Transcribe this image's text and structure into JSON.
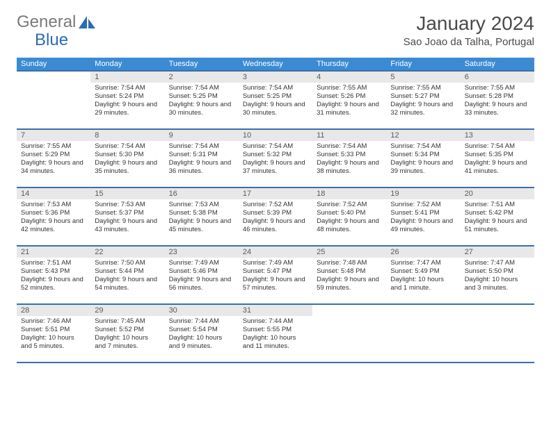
{
  "logo": {
    "text1": "General",
    "text2": "Blue"
  },
  "title": "January 2024",
  "location": "Sao Joao da Talha, Portugal",
  "colors": {
    "header_bg": "#3b8bd4",
    "header_text": "#ffffff",
    "row_border": "#3b6fa8",
    "daynum_bg": "#e8e8e8",
    "logo_blue": "#2a6cb3",
    "logo_gray": "#7a7a7a"
  },
  "weekdays": [
    "Sunday",
    "Monday",
    "Tuesday",
    "Wednesday",
    "Thursday",
    "Friday",
    "Saturday"
  ],
  "weeks": [
    [
      null,
      {
        "n": "1",
        "sr": "7:54 AM",
        "ss": "5:24 PM",
        "dl": "9 hours and 29 minutes."
      },
      {
        "n": "2",
        "sr": "7:54 AM",
        "ss": "5:25 PM",
        "dl": "9 hours and 30 minutes."
      },
      {
        "n": "3",
        "sr": "7:54 AM",
        "ss": "5:25 PM",
        "dl": "9 hours and 30 minutes."
      },
      {
        "n": "4",
        "sr": "7:55 AM",
        "ss": "5:26 PM",
        "dl": "9 hours and 31 minutes."
      },
      {
        "n": "5",
        "sr": "7:55 AM",
        "ss": "5:27 PM",
        "dl": "9 hours and 32 minutes."
      },
      {
        "n": "6",
        "sr": "7:55 AM",
        "ss": "5:28 PM",
        "dl": "9 hours and 33 minutes."
      }
    ],
    [
      {
        "n": "7",
        "sr": "7:55 AM",
        "ss": "5:29 PM",
        "dl": "9 hours and 34 minutes."
      },
      {
        "n": "8",
        "sr": "7:54 AM",
        "ss": "5:30 PM",
        "dl": "9 hours and 35 minutes."
      },
      {
        "n": "9",
        "sr": "7:54 AM",
        "ss": "5:31 PM",
        "dl": "9 hours and 36 minutes."
      },
      {
        "n": "10",
        "sr": "7:54 AM",
        "ss": "5:32 PM",
        "dl": "9 hours and 37 minutes."
      },
      {
        "n": "11",
        "sr": "7:54 AM",
        "ss": "5:33 PM",
        "dl": "9 hours and 38 minutes."
      },
      {
        "n": "12",
        "sr": "7:54 AM",
        "ss": "5:34 PM",
        "dl": "9 hours and 39 minutes."
      },
      {
        "n": "13",
        "sr": "7:54 AM",
        "ss": "5:35 PM",
        "dl": "9 hours and 41 minutes."
      }
    ],
    [
      {
        "n": "14",
        "sr": "7:53 AM",
        "ss": "5:36 PM",
        "dl": "9 hours and 42 minutes."
      },
      {
        "n": "15",
        "sr": "7:53 AM",
        "ss": "5:37 PM",
        "dl": "9 hours and 43 minutes."
      },
      {
        "n": "16",
        "sr": "7:53 AM",
        "ss": "5:38 PM",
        "dl": "9 hours and 45 minutes."
      },
      {
        "n": "17",
        "sr": "7:52 AM",
        "ss": "5:39 PM",
        "dl": "9 hours and 46 minutes."
      },
      {
        "n": "18",
        "sr": "7:52 AM",
        "ss": "5:40 PM",
        "dl": "9 hours and 48 minutes."
      },
      {
        "n": "19",
        "sr": "7:52 AM",
        "ss": "5:41 PM",
        "dl": "9 hours and 49 minutes."
      },
      {
        "n": "20",
        "sr": "7:51 AM",
        "ss": "5:42 PM",
        "dl": "9 hours and 51 minutes."
      }
    ],
    [
      {
        "n": "21",
        "sr": "7:51 AM",
        "ss": "5:43 PM",
        "dl": "9 hours and 52 minutes."
      },
      {
        "n": "22",
        "sr": "7:50 AM",
        "ss": "5:44 PM",
        "dl": "9 hours and 54 minutes."
      },
      {
        "n": "23",
        "sr": "7:49 AM",
        "ss": "5:46 PM",
        "dl": "9 hours and 56 minutes."
      },
      {
        "n": "24",
        "sr": "7:49 AM",
        "ss": "5:47 PM",
        "dl": "9 hours and 57 minutes."
      },
      {
        "n": "25",
        "sr": "7:48 AM",
        "ss": "5:48 PM",
        "dl": "9 hours and 59 minutes."
      },
      {
        "n": "26",
        "sr": "7:47 AM",
        "ss": "5:49 PM",
        "dl": "10 hours and 1 minute."
      },
      {
        "n": "27",
        "sr": "7:47 AM",
        "ss": "5:50 PM",
        "dl": "10 hours and 3 minutes."
      }
    ],
    [
      {
        "n": "28",
        "sr": "7:46 AM",
        "ss": "5:51 PM",
        "dl": "10 hours and 5 minutes."
      },
      {
        "n": "29",
        "sr": "7:45 AM",
        "ss": "5:52 PM",
        "dl": "10 hours and 7 minutes."
      },
      {
        "n": "30",
        "sr": "7:44 AM",
        "ss": "5:54 PM",
        "dl": "10 hours and 9 minutes."
      },
      {
        "n": "31",
        "sr": "7:44 AM",
        "ss": "5:55 PM",
        "dl": "10 hours and 11 minutes."
      },
      null,
      null,
      null
    ]
  ],
  "labels": {
    "sunrise": "Sunrise:",
    "sunset": "Sunset:",
    "daylight": "Daylight:"
  }
}
